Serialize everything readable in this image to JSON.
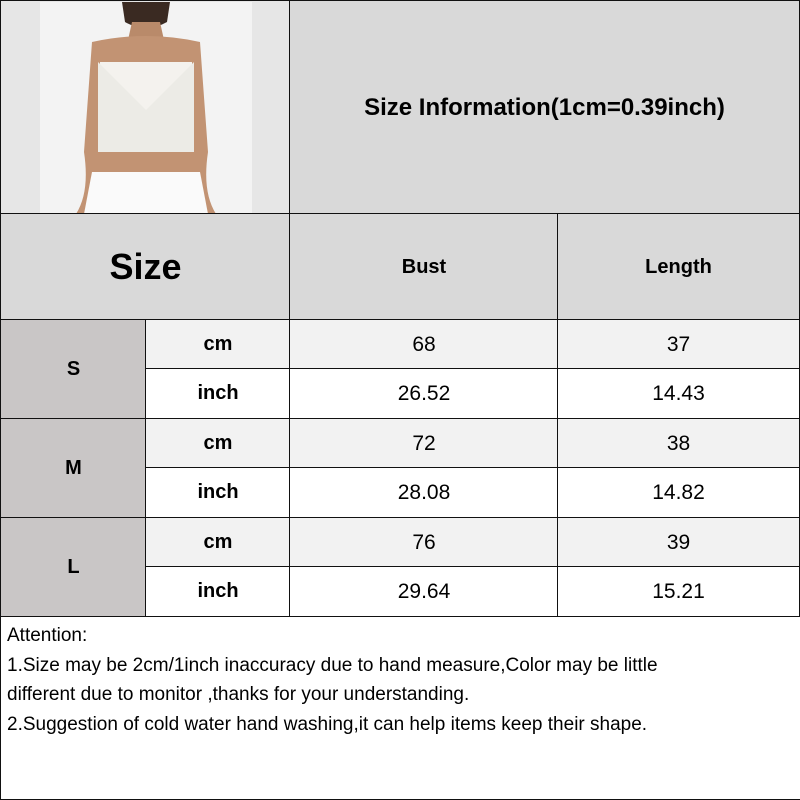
{
  "title": "Size Information(1cm=0.39inch)",
  "header": {
    "size": "Size",
    "bust": "Bust",
    "length": "Length"
  },
  "rows": [
    {
      "size": "S",
      "cm": {
        "unit": "cm",
        "bust": "68",
        "length": "37"
      },
      "inch": {
        "unit": "inch",
        "bust": "26.52",
        "length": "14.43"
      }
    },
    {
      "size": "M",
      "cm": {
        "unit": "cm",
        "bust": "72",
        "length": "38"
      },
      "inch": {
        "unit": "inch",
        "bust": "28.08",
        "length": "14.82"
      }
    },
    {
      "size": "L",
      "cm": {
        "unit": "cm",
        "bust": "76",
        "length": "39"
      },
      "inch": {
        "unit": "inch",
        "bust": "29.64",
        "length": "15.21"
      }
    }
  ],
  "attention": {
    "heading": "Attention:",
    "line1": "1.Size may be 2cm/1inch inaccuracy due to hand measure,Color may be little",
    "line2": "different due to monitor ,thanks for your understanding.",
    "line3": "2.Suggestion of cold water hand washing,it can help items keep their shape."
  },
  "colors": {
    "header": "#d9d9d9",
    "size_column": "#c9c6c6",
    "cm_row": "#f2f2f2",
    "inch_row": "#ffffff"
  }
}
